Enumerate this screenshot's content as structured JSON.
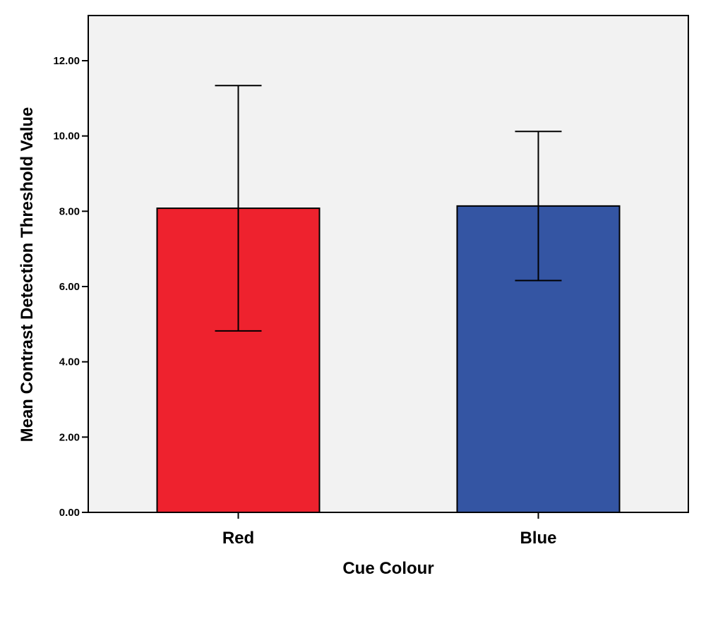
{
  "chart_data": {
    "type": "bar",
    "categories": [
      "Red",
      "Blue"
    ],
    "values": [
      8.08,
      8.14
    ],
    "error_bars": [
      {
        "low": 4.82,
        "high": 11.34
      },
      {
        "low": 6.16,
        "high": 10.12
      }
    ],
    "bar_colors": [
      "#ee222e",
      "#3455a3"
    ],
    "xlabel": "Cue Colour",
    "ylabel": "Mean Contrast Detection Threshold Value",
    "ylim": [
      0,
      13.2
    ],
    "yticks": [
      0,
      2,
      4,
      6,
      8,
      10,
      12
    ],
    "ytick_labels": [
      "0.00",
      "2.00",
      "4.00",
      "6.00",
      "8.00",
      "10.00",
      "12.00"
    ],
    "grid": false,
    "plot_background": "#f2f2f2"
  }
}
